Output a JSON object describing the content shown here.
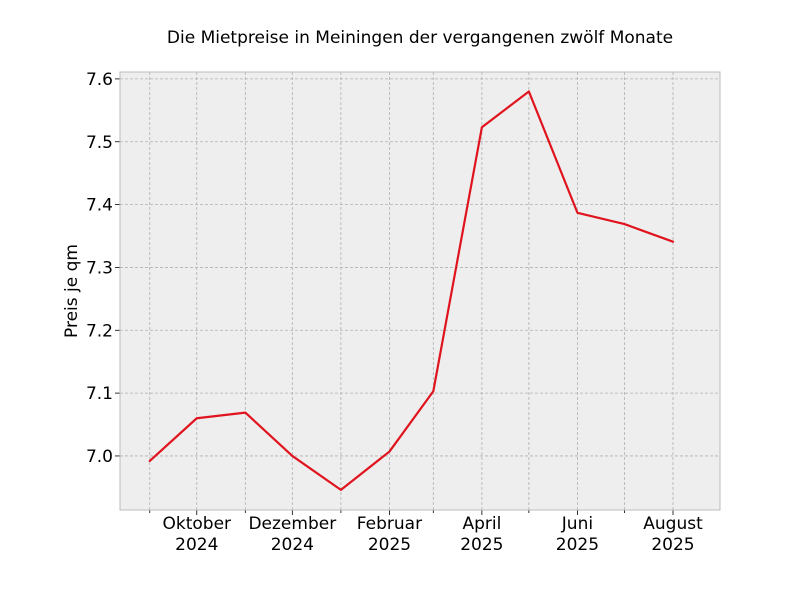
{
  "chart_data": {
    "type": "line",
    "title": "Die Mietpreise in Meiningen der vergangenen zwölf Monate",
    "xlabel": "",
    "ylabel": "Preis je qm",
    "x": [
      "2024-09",
      "2024-10",
      "2024-11",
      "2024-12",
      "2025-01",
      "2025-02",
      "2025-03",
      "2025-04",
      "2025-05",
      "2025-06",
      "2025-07",
      "2025-08"
    ],
    "series": [
      {
        "values": [
          6.992,
          7.06,
          7.069,
          7.0,
          6.946,
          7.007,
          7.103,
          7.523,
          7.58,
          7.387,
          7.369,
          7.341
        ]
      }
    ],
    "x_tick_labels": [
      {
        "x": "2024-10",
        "line1": "Oktober",
        "line2": "2024"
      },
      {
        "x": "2024-12",
        "line1": "Dezember",
        "line2": "2024"
      },
      {
        "x": "2025-02",
        "line1": "Februar",
        "line2": "2025"
      },
      {
        "x": "2025-04",
        "line1": "April",
        "line2": "2025"
      },
      {
        "x": "2025-06",
        "line1": "Juni",
        "line2": "2025"
      },
      {
        "x": "2025-08",
        "line1": "August",
        "line2": "2025"
      }
    ],
    "yticks": [
      7.0,
      7.1,
      7.2,
      7.3,
      7.4,
      7.5,
      7.6
    ],
    "ytick_labels": [
      "7.0",
      "7.1",
      "7.2",
      "7.3",
      "7.4",
      "7.5",
      "7.6"
    ],
    "ylim": [
      6.914,
      7.611
    ],
    "xlim": [
      "2024-08-13",
      "2025-08-31"
    ],
    "grid": true,
    "line_color": "#e0141e",
    "plot_background": "#eeeeee",
    "grid_color": "#b0b0b0",
    "frame_color": "#bcbcbc"
  }
}
